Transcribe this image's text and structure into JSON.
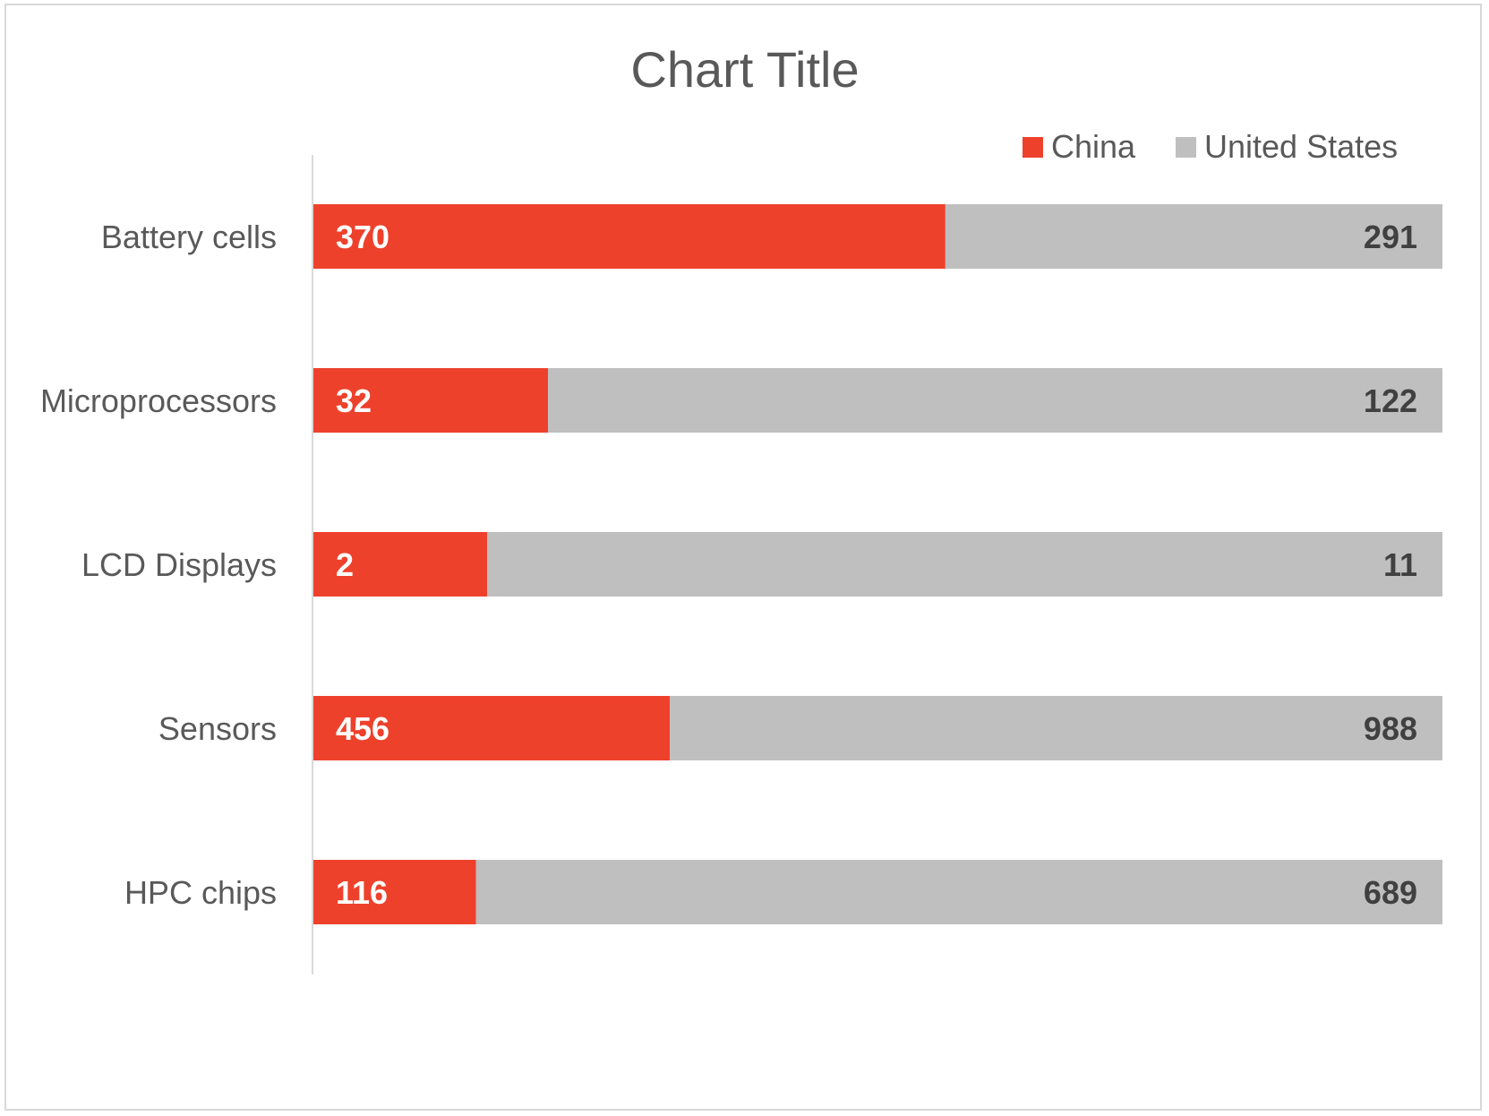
{
  "chart_data": {
    "type": "bar",
    "orientation": "horizontal",
    "stacked": "100%",
    "title": "Chart Title",
    "categories": [
      "Battery cells",
      "Microprocessors",
      "LCD Displays",
      "Sensors",
      "HPC chips"
    ],
    "series": [
      {
        "name": "China",
        "values": [
          370,
          32,
          2,
          456,
          116
        ],
        "color": "#ee412c",
        "label_color": "#ffffff"
      },
      {
        "name": "United States",
        "values": [
          291,
          122,
          11,
          988,
          689
        ],
        "color": "#bfbfbf",
        "label_color": "#404040"
      }
    ],
    "legend_position": "top-right",
    "grid": false,
    "axis_line_color": "#d9d9d9",
    "frame_color": "#d9d9d9"
  }
}
